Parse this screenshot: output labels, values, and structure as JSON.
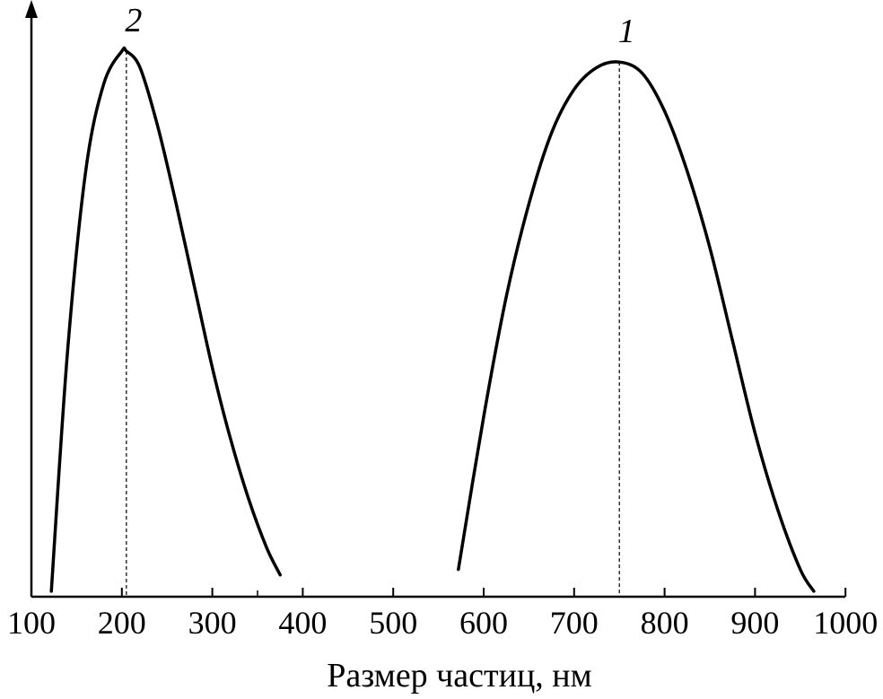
{
  "chart_data": {
    "type": "line",
    "xlabel": "Размер частиц, нм",
    "ylabel": "",
    "xlim": [
      100,
      1000
    ],
    "ylim": [
      0,
      1
    ],
    "x_ticks": [
      "100",
      "200",
      "300",
      "400",
      "500",
      "600",
      "700",
      "800",
      "900",
      "1000"
    ],
    "x_tick_values": [
      100,
      200,
      300,
      400,
      500,
      600,
      700,
      800,
      900,
      1000
    ],
    "minor_ticks": [
      350
    ],
    "grid": false,
    "legend": "none",
    "line_color": "#000000",
    "series": [
      {
        "name": "1",
        "peak_x": 750,
        "x": [
          572,
          600,
          625,
          650,
          675,
          700,
          725,
          750,
          775,
          800,
          825,
          850,
          875,
          900,
          925,
          950,
          965
        ],
        "y": [
          0.05,
          0.33,
          0.55,
          0.72,
          0.85,
          0.93,
          0.97,
          0.98,
          0.96,
          0.89,
          0.78,
          0.64,
          0.47,
          0.3,
          0.16,
          0.05,
          0.01
        ]
      },
      {
        "name": "2",
        "peak_x": 205,
        "x": [
          122,
          140,
          160,
          180,
          200,
          205,
          220,
          240,
          260,
          280,
          300,
          320,
          340,
          360,
          375
        ],
        "y": [
          0.01,
          0.45,
          0.78,
          0.94,
          1.0,
          1.0,
          0.97,
          0.86,
          0.72,
          0.57,
          0.42,
          0.29,
          0.18,
          0.09,
          0.04
        ]
      }
    ]
  }
}
